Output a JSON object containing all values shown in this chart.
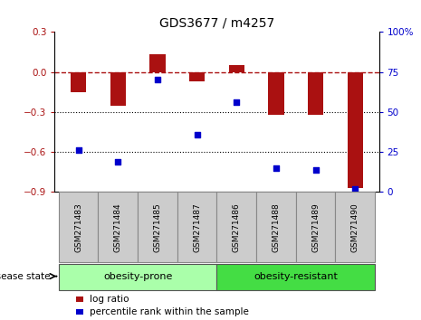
{
  "title": "GDS3677 / m4257",
  "samples": [
    "GSM271483",
    "GSM271484",
    "GSM271485",
    "GSM271487",
    "GSM271486",
    "GSM271488",
    "GSM271489",
    "GSM271490"
  ],
  "log_ratio": [
    -0.15,
    -0.25,
    0.13,
    -0.07,
    0.05,
    -0.32,
    -0.32,
    -0.87
  ],
  "percentile_rank": [
    26,
    19,
    70,
    36,
    56,
    15,
    14,
    2
  ],
  "bar_color": "#aa1111",
  "dot_color": "#0000cc",
  "ylim_left": [
    -0.9,
    0.3
  ],
  "ylim_right": [
    0,
    100
  ],
  "yticks_left": [
    -0.9,
    -0.6,
    -0.3,
    0.0,
    0.3
  ],
  "yticks_right": [
    0,
    25,
    50,
    75,
    100
  ],
  "group_prone_label": "obesity-prone",
  "group_prone_color": "#aaffaa",
  "group_resistant_label": "obesity-resistant",
  "group_resistant_color": "#44dd44",
  "group_prone_indices": [
    0,
    1,
    2,
    3
  ],
  "group_resistant_indices": [
    4,
    5,
    6,
    7
  ],
  "group_label": "disease state",
  "legend_log_label": "log ratio",
  "legend_pct_label": "percentile rank within the sample",
  "hline_color": "#aa1111",
  "dotted_lines": [
    -0.3,
    -0.6
  ],
  "sample_box_color": "#cccccc",
  "sample_box_edge": "#888888"
}
